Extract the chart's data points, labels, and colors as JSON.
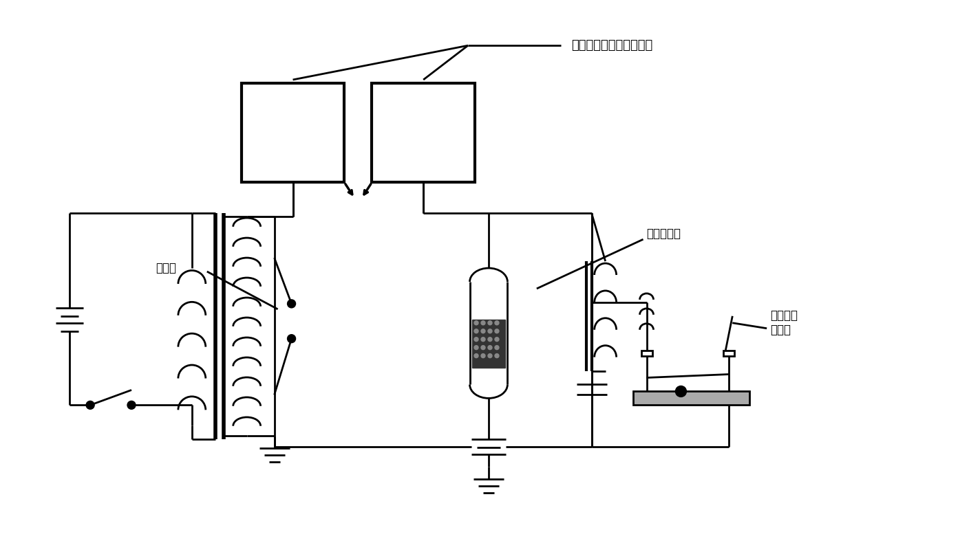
{
  "bg_color": "#ffffff",
  "lc": "#000000",
  "lw": 2.0,
  "fig_w": 14.08,
  "fig_h": 8.06,
  "dpi": 100,
  "labels": {
    "antenna": "金屬板，其功用有如天線",
    "spark_gap": "火花隉",
    "coherer": "凝聚檢波器",
    "morse": "呩斯電碼\n發聲機"
  }
}
